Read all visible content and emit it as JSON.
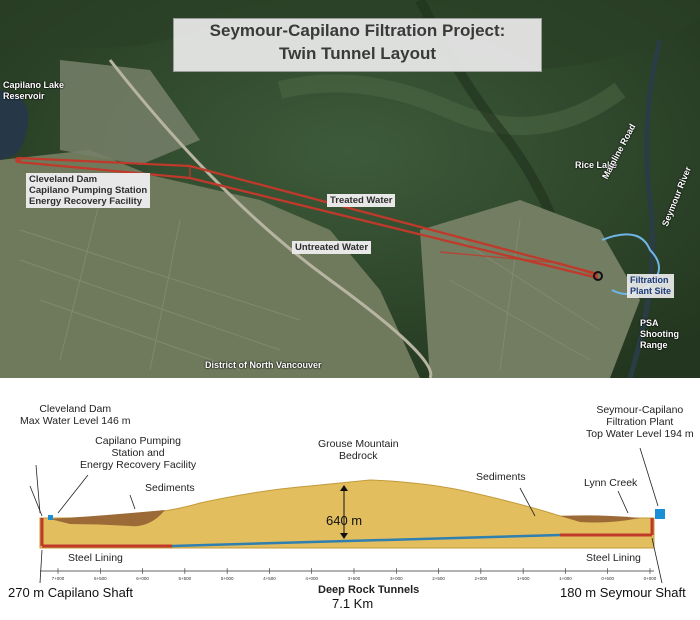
{
  "map": {
    "title_line1": "Seymour-Capilano Filtration Project:",
    "title_line2": "Twin Tunnel Layout",
    "labels": {
      "capilano_lake": [
        "Capilano Lake",
        "Reservoir"
      ],
      "cleveland_dam": [
        "Cleveland Dam",
        "Capilano Pumping Station",
        "Energy Recovery Facility"
      ],
      "treated_water": "Treated Water",
      "untreated_water": "Untreated Water",
      "rice_lake": "Rice Lake",
      "mainline_road": "Mainline Road",
      "seymour_river": "Seymour River",
      "filtration_plant_site": [
        "Filtration",
        "Plant Site"
      ],
      "psa_shooting_range": [
        "PSA",
        "Shooting",
        "Range"
      ],
      "district": "District of North Vancouver"
    }
  },
  "profile": {
    "cleveland_dam": [
      "Cleveland Dam",
      "Max Water Level 146 m"
    ],
    "pumping_station": [
      "Capilano Pumping",
      "Station and",
      "Energy Recovery Facility"
    ],
    "grouse_mountain": [
      "Grouse Mountain",
      "Bedrock"
    ],
    "filtration_plant": [
      "Seymour-Capilano",
      "Filtration Plant",
      "Top Water Level 194 m"
    ],
    "sediments_left": "Sediments",
    "sediments_right": "Sediments",
    "lynn_creek": "Lynn Creek",
    "height_640": "640 m",
    "steel_lining_left": "Steel Lining",
    "steel_lining_right": "Steel Lining",
    "capilano_shaft": "270 m Capilano Shaft",
    "seymour_shaft": "180 m Seymour Shaft",
    "deep_rock_tunnels": "Deep Rock Tunnels",
    "tunnel_length": "7.1 Km",
    "chainage_ticks": [
      "7+000",
      "6+500",
      "6+000",
      "5+500",
      "5+000",
      "4+500",
      "4+000",
      "3+500",
      "3+000",
      "2+500",
      "2+000",
      "1+500",
      "1+000",
      "0+500",
      "0+000"
    ]
  },
  "colors": {
    "tunnel_red": "#c0392b",
    "tunnel_blue": "#2f7fb0",
    "bedrock": "#e2be5f",
    "sediment": "#9b6a36",
    "shaft_blue": "#1b8fd6"
  }
}
